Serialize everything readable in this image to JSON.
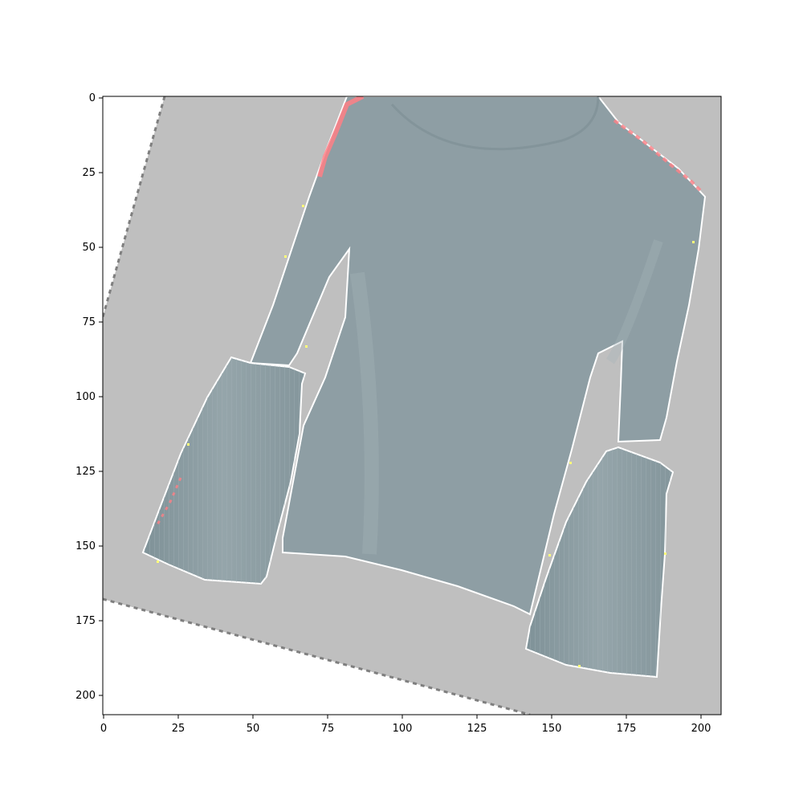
{
  "axes": {
    "x_ticks": [
      "0",
      "25",
      "50",
      "75",
      "100",
      "125",
      "150",
      "175",
      "200"
    ],
    "y_ticks": [
      "0",
      "25",
      "50",
      "75",
      "100",
      "125",
      "150",
      "175",
      "200"
    ],
    "xlim": [
      0,
      207
    ],
    "ylim": [
      207,
      0
    ]
  },
  "colors": {
    "background": "#bfbfbf",
    "garment": "#8c9ca2",
    "edge_highlight": "#ff7f86",
    "edge_yellow": "#ffff7a",
    "outside": "#ffffff",
    "dashed_edge": "#7f7f7f"
  }
}
